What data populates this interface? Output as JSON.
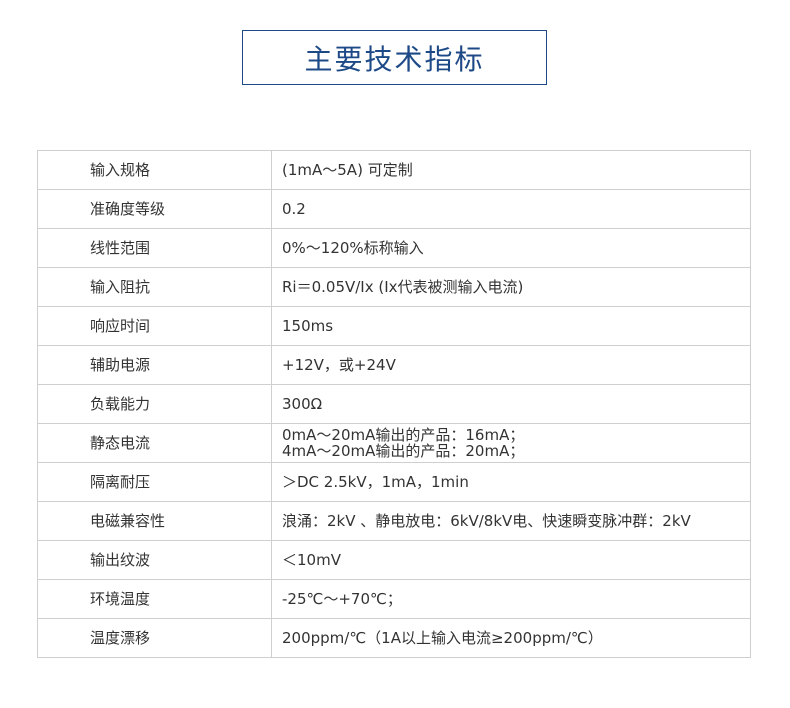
{
  "title": "主要技术指标",
  "rows": [
    {
      "label": "输入规格",
      "value": "(1mA～5A) 可定制"
    },
    {
      "label": "准确度等级",
      "value": "0.2"
    },
    {
      "label": "线性范围",
      "value": "0%～120%标称输入"
    },
    {
      "label": "输入阻抗",
      "value": "Ri＝0.05V/Ix (Ix代表被测输入电流)"
    },
    {
      "label": "响应时间",
      "value": "150ms"
    },
    {
      "label": "辅助电源",
      "value": "+12V，或+24V"
    },
    {
      "label": "负载能力",
      "value": "300Ω"
    },
    {
      "label": "静态电流",
      "value": "0mA～20mA输出的产品：16mA；\n4mA～20mA输出的产品：20mA；"
    },
    {
      "label": "隔离耐压",
      "value": "＞DC 2.5kV，1mA，1min"
    },
    {
      "label": "电磁兼容性",
      "value": "浪涌：2kV 、静电放电：6kV/8kV电、快速瞬变脉冲群：2kV"
    },
    {
      "label": "输出纹波",
      "value": "＜10mV"
    },
    {
      "label": "环境温度",
      "value": "-25℃～+70℃；"
    },
    {
      "label": "温度漂移",
      "value": "200ppm/℃（1A以上输入电流≥200ppm/℃）"
    }
  ]
}
